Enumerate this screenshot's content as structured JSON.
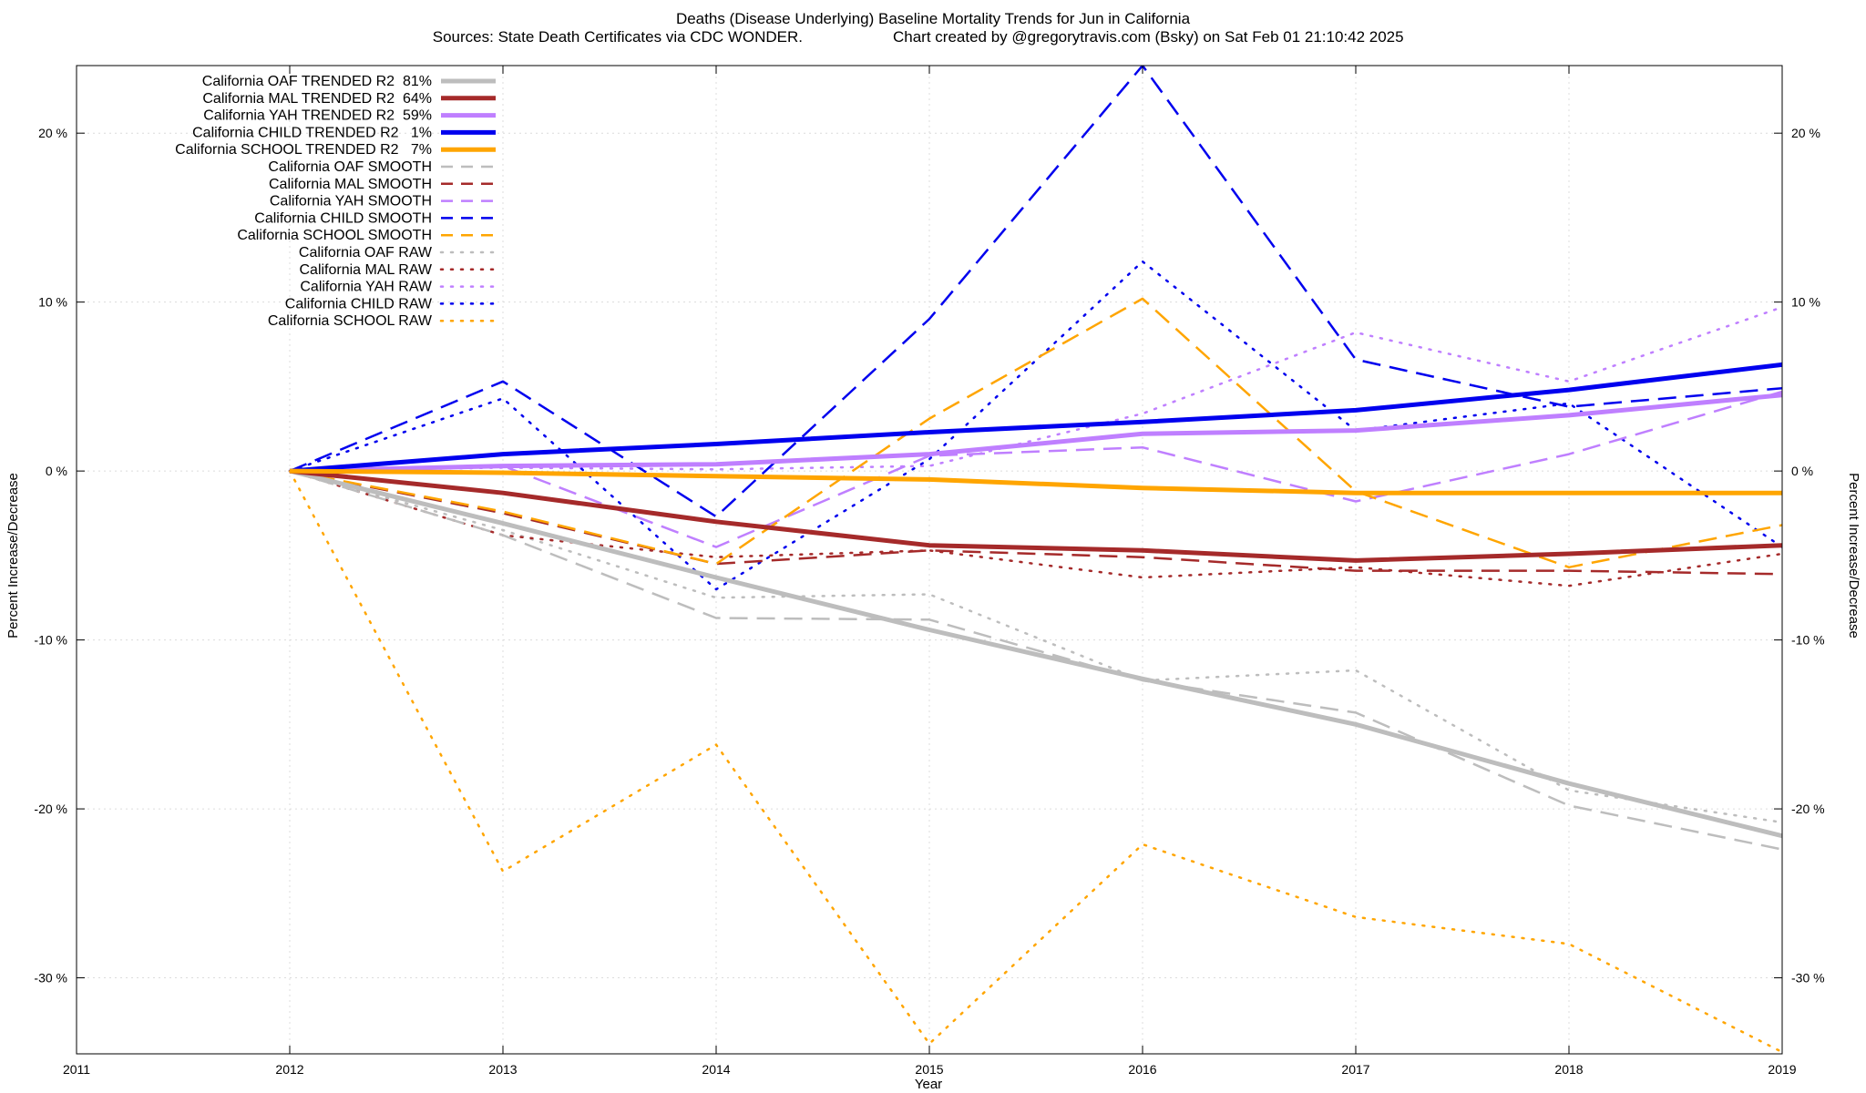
{
  "chart_data": {
    "type": "line",
    "title": "Deaths (Disease Underlying)  Baseline Mortality Trends for Jun in California",
    "subtitle_left": "Sources: State Death Certificates via CDC WONDER.",
    "subtitle_right": "Chart created by @gregorytravis.com (Bsky) on Sat Feb 01 21:10:42 2025",
    "xlabel": "Year",
    "ylabel_left": "Percent Increase/Decrease",
    "ylabel_right": "Percent Increase/Decrease",
    "xlim": [
      2011,
      2019
    ],
    "ylim": [
      -34.5,
      24
    ],
    "x_ticks": [
      2011,
      2012,
      2013,
      2014,
      2015,
      2016,
      2017,
      2018,
      2019
    ],
    "x_tick_labels": [
      "2011",
      "2012",
      "2013",
      "2014",
      "2015",
      "2016",
      "2017",
      "2018",
      "2019"
    ],
    "y_ticks": [
      20,
      10,
      0,
      -10,
      -20,
      -30
    ],
    "y_tick_labels": [
      "20 %",
      "10 %",
      "0 %",
      "-10 %",
      "-20 %",
      "-30 %"
    ],
    "grid": true,
    "legend_position": "top-left",
    "x": [
      2012,
      2013,
      2014,
      2015,
      2016,
      2017,
      2018,
      2019
    ],
    "series": [
      {
        "name": "California OAF TRENDED R2  81%",
        "color": "#bdbdbd",
        "style": "solid",
        "values": [
          0,
          -3.1,
          -6.3,
          -9.4,
          -12.3,
          -15.0,
          -18.5,
          -21.6
        ]
      },
      {
        "name": "California MAL TRENDED R2  64%",
        "color": "#a52a2a",
        "style": "solid",
        "values": [
          0,
          -1.3,
          -3.0,
          -4.4,
          -4.7,
          -5.3,
          -4.9,
          -4.4
        ]
      },
      {
        "name": "California YAH TRENDED R2  59%",
        "color": "#bf7fff",
        "style": "solid",
        "values": [
          0,
          0.3,
          0.4,
          1.0,
          2.2,
          2.4,
          3.3,
          4.5
        ]
      },
      {
        "name": "California CHILD TRENDED R2   1%",
        "color": "#0000ee",
        "style": "solid",
        "values": [
          0,
          1.0,
          1.6,
          2.3,
          2.9,
          3.6,
          4.8,
          6.3
        ]
      },
      {
        "name": "California SCHOOL TRENDED R2   7%",
        "color": "#ffa500",
        "style": "solid",
        "values": [
          0,
          -0.1,
          -0.3,
          -0.5,
          -1.0,
          -1.3,
          -1.3,
          -1.3
        ]
      },
      {
        "name": "California OAF SMOOTH",
        "color": "#bdbdbd",
        "style": "dashed",
        "values": [
          0,
          -3.8,
          -8.7,
          -8.8,
          -12.4,
          -14.3,
          -19.8,
          -22.4
        ]
      },
      {
        "name": "California MAL SMOOTH",
        "color": "#a52a2a",
        "style": "dashed",
        "values": [
          0,
          -2.5,
          -5.5,
          -4.7,
          -5.1,
          -5.9,
          -5.9,
          -6.1
        ]
      },
      {
        "name": "California YAH SMOOTH",
        "color": "#bf7fff",
        "style": "dashed",
        "values": [
          0,
          0.3,
          -4.5,
          0.9,
          1.4,
          -1.8,
          1.0,
          4.7
        ]
      },
      {
        "name": "California CHILD SMOOTH",
        "color": "#0000ee",
        "style": "dashed",
        "values": [
          0,
          5.3,
          -2.7,
          9.0,
          24.0,
          6.6,
          3.8,
          4.9
        ]
      },
      {
        "name": "California SCHOOL SMOOTH",
        "color": "#ffa500",
        "style": "dashed",
        "values": [
          0,
          -2.4,
          -5.5,
          3.1,
          10.2,
          -1.2,
          -5.7,
          -3.2
        ]
      },
      {
        "name": "California OAF RAW",
        "color": "#bdbdbd",
        "style": "dotted",
        "values": [
          0,
          -3.5,
          -7.5,
          -7.3,
          -12.4,
          -11.8,
          -18.9,
          -20.8
        ]
      },
      {
        "name": "California MAL RAW",
        "color": "#a52a2a",
        "style": "dotted",
        "values": [
          0,
          -3.8,
          -5.1,
          -4.7,
          -6.3,
          -5.7,
          -6.8,
          -4.9
        ]
      },
      {
        "name": "California YAH RAW",
        "color": "#bf7fff",
        "style": "dotted",
        "values": [
          0,
          0.2,
          0.1,
          0.3,
          3.4,
          8.2,
          5.3,
          9.7
        ]
      },
      {
        "name": "California CHILD RAW",
        "color": "#0000ee",
        "style": "dotted",
        "values": [
          0,
          4.3,
          -7.0,
          0.7,
          12.4,
          2.4,
          4.0,
          -4.5
        ]
      },
      {
        "name": "California SCHOOL RAW",
        "color": "#ffa500",
        "style": "dotted",
        "values": [
          0,
          -23.7,
          -16.2,
          -33.9,
          -22.1,
          -26.4,
          -28.0,
          -34.4
        ]
      }
    ]
  }
}
